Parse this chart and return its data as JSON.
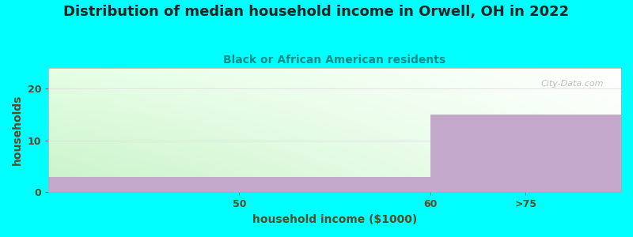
{
  "title": "Distribution of median household income in Orwell, OH in 2022",
  "subtitle": "Black or African American residents",
  "xlabel": "household income ($1000)",
  "ylabel": "households",
  "background_color": "#00FFFF",
  "plot_bg_top_left": "#c8eec8",
  "plot_bg_top_right": "#f0f8f0",
  "plot_bg_bottom_left": "#d8f0d8",
  "plot_bg_bottom_right": "#ffffff",
  "bar_color": "#C3A8CC",
  "title_color": "#222222",
  "subtitle_color": "#008B8B",
  "axis_label_color": "#5a4a2a",
  "tick_color": "#5a4a2a",
  "watermark": "City-Data.com",
  "bar1_value": 3,
  "bar2_value": 15,
  "xlim": [
    0,
    3
  ],
  "ylim": [
    0,
    24
  ],
  "yticks": [
    0,
    10,
    20
  ],
  "xtick_labels": [
    "50",
    "60",
    ">75"
  ],
  "grid_color": "#dddddd",
  "title_fontsize": 13,
  "subtitle_fontsize": 10,
  "label_fontsize": 10,
  "tick_fontsize": 9
}
